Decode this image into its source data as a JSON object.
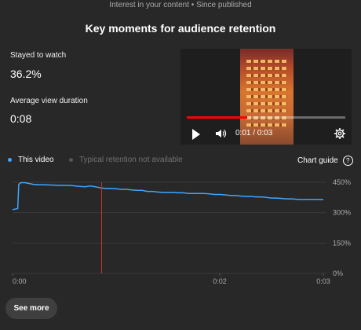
{
  "header": {
    "subheading": "Interest in your content • Since published",
    "title": "Key moments for audience retention"
  },
  "stats": {
    "stayed_label": "Stayed to watch",
    "stayed_value": "36.2%",
    "avd_label": "Average view duration",
    "avd_value": "0:08"
  },
  "player": {
    "time": "0:01 / 0:03",
    "progress": 0.38,
    "icons": [
      "play-icon",
      "volume-icon",
      "settings-icon"
    ]
  },
  "legend": {
    "this_video": "This video",
    "typical": "Typical retention not available",
    "chart_guide": "Chart guide",
    "help": "?"
  },
  "colors": {
    "series": "#3ea6ff",
    "marker": "#c0392b",
    "accent": "#ff0000",
    "background": "#282828"
  },
  "chart_data": {
    "type": "line",
    "x": [
      0,
      0.05,
      0.06,
      0.08,
      0.12,
      0.2,
      0.25,
      0.3,
      0.35,
      0.45,
      0.55,
      0.6,
      0.65,
      0.7,
      0.75,
      0.8,
      0.85,
      0.9,
      0.95,
      1.0,
      1.05,
      1.1,
      1.15,
      1.2,
      1.25,
      1.3,
      1.35,
      1.4,
      1.45,
      1.5,
      1.55,
      1.6,
      1.65,
      1.7,
      1.75,
      1.8,
      1.85,
      1.9,
      1.95,
      2.0,
      2.05,
      2.1,
      2.15,
      2.2,
      2.25,
      2.3,
      2.35,
      2.4,
      2.45,
      2.5,
      2.55,
      2.6,
      2.65,
      2.7,
      2.75,
      2.8,
      2.85,
      2.9,
      2.95,
      3.0
    ],
    "series": [
      {
        "name": "This video",
        "values": [
          315,
          320,
          440,
          448,
          448,
          440,
          438,
          438,
          437,
          435,
          435,
          432,
          430,
          428,
          432,
          428,
          422,
          420,
          420,
          418,
          415,
          415,
          412,
          410,
          410,
          405,
          405,
          402,
          400,
          400,
          400,
          398,
          398,
          395,
          395,
          395,
          395,
          393,
          390,
          390,
          388,
          385,
          385,
          382,
          380,
          380,
          378,
          378,
          375,
          372,
          372,
          370,
          368,
          368,
          366,
          365,
          366,
          366,
          365,
          365
        ]
      }
    ],
    "marker_x": 0.86,
    "xlim": [
      0,
      3
    ],
    "ylim": [
      0,
      450
    ],
    "x_ticks": [
      "0:00",
      "0:02",
      "0:03"
    ],
    "y_ticks": [
      "450%",
      "300%",
      "150%",
      "0%"
    ],
    "grid": true
  },
  "footer": {
    "see_more": "See more"
  }
}
